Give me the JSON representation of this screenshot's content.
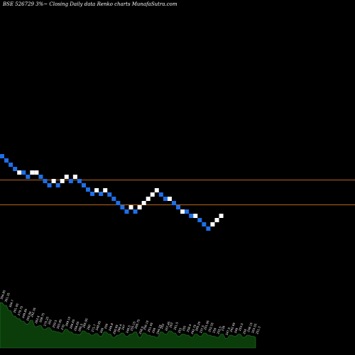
{
  "chart_data": {
    "type": "renko",
    "title": "BSE 526729 3%~ Closing Daily data  Renko  charts MunafaSutra.com",
    "colors": {
      "background": "#000000",
      "up_brick": "#ffffff",
      "down_brick": "#1e6fe8",
      "reference_line": "#b5651d",
      "volume_fill": "#0b3d0b",
      "volume_stroke": "#2a7a2a",
      "label": "#ffffff"
    },
    "reference_lines": [
      253.5,
      288.5
    ],
    "bricks": [
      {
        "dir": "down",
        "y": 220
      },
      {
        "dir": "down",
        "y": 226
      },
      {
        "dir": "down",
        "y": 232
      },
      {
        "dir": "down",
        "y": 238
      },
      {
        "dir": "up",
        "y": 243
      },
      {
        "dir": "down",
        "y": 243
      },
      {
        "dir": "down",
        "y": 249
      },
      {
        "dir": "up",
        "y": 243
      },
      {
        "dir": "up",
        "y": 243
      },
      {
        "dir": "down",
        "y": 249
      },
      {
        "dir": "down",
        "y": 255
      },
      {
        "dir": "down",
        "y": 261
      },
      {
        "dir": "up",
        "y": 255
      },
      {
        "dir": "down",
        "y": 261
      },
      {
        "dir": "up",
        "y": 255
      },
      {
        "dir": "up",
        "y": 249
      },
      {
        "dir": "down",
        "y": 255
      },
      {
        "dir": "up",
        "y": 249
      },
      {
        "dir": "down",
        "y": 255
      },
      {
        "dir": "down",
        "y": 261
      },
      {
        "dir": "down",
        "y": 267
      },
      {
        "dir": "down",
        "y": 273
      },
      {
        "dir": "up",
        "y": 268
      },
      {
        "dir": "down",
        "y": 273
      },
      {
        "dir": "up",
        "y": 268
      },
      {
        "dir": "down",
        "y": 274
      },
      {
        "dir": "down",
        "y": 280
      },
      {
        "dir": "down",
        "y": 286
      },
      {
        "dir": "down",
        "y": 292
      },
      {
        "dir": "down",
        "y": 298
      },
      {
        "dir": "up",
        "y": 292
      },
      {
        "dir": "down",
        "y": 298
      },
      {
        "dir": "up",
        "y": 292
      },
      {
        "dir": "up",
        "y": 286
      },
      {
        "dir": "up",
        "y": 280
      },
      {
        "dir": "up",
        "y": 274
      },
      {
        "dir": "up",
        "y": 268
      },
      {
        "dir": "down",
        "y": 274
      },
      {
        "dir": "down",
        "y": 280
      },
      {
        "dir": "up",
        "y": 280
      },
      {
        "dir": "down",
        "y": 286
      },
      {
        "dir": "down",
        "y": 292
      },
      {
        "dir": "up",
        "y": 298
      },
      {
        "dir": "down",
        "y": 298
      },
      {
        "dir": "down",
        "y": 304
      },
      {
        "dir": "up",
        "y": 304
      },
      {
        "dir": "down",
        "y": 310
      },
      {
        "dir": "down",
        "y": 316
      },
      {
        "dir": "down",
        "y": 322
      },
      {
        "dir": "up",
        "y": 316
      },
      {
        "dir": "up",
        "y": 310
      },
      {
        "dir": "up",
        "y": 304
      }
    ],
    "price_labels": [
      "304.85",
      "301.35",
      "304.7",
      "291.05",
      "279.75",
      "249.85",
      "263.05",
      "262.35",
      "263.6",
      "268.75",
      "275.25",
      "262",
      "259.5",
      "263.95",
      "270",
      "269.15",
      "266.65",
      "256.65",
      "265.5",
      "265.95",
      "260",
      "271.7",
      "248.95",
      "260",
      "250",
      "249.8",
      "250.05",
      "266.4",
      "247",
      "246.5",
      "255.15",
      "260.75",
      "258.5",
      "256.15",
      "251.05",
      "250",
      "244.25",
      "252",
      "267.45",
      "263",
      "261.5",
      "253",
      "255",
      "258.4",
      "262.75",
      "265.25",
      "237.5",
      "251.95",
      "252.55",
      "256",
      "255.5",
      "230",
      "247.5",
      "242.65",
      "240",
      "253.5",
      "255",
      "238.15",
      "263.55",
      "251.3"
    ],
    "volume_profile": [
      0.85,
      0.8,
      0.7,
      0.6,
      0.55,
      0.5,
      0.45,
      0.52,
      0.4,
      0.42,
      0.35,
      0.38,
      0.32,
      0.3,
      0.28,
      0.35,
      0.3,
      0.26,
      0.25,
      0.32,
      0.28,
      0.24,
      0.27,
      0.22,
      0.3,
      0.26,
      0.2,
      0.24,
      0.28,
      0.22,
      0.26,
      0.3,
      0.2,
      0.28,
      0.24,
      0.22,
      0.2,
      0.3,
      0.26,
      0.32,
      0.28,
      0.22,
      0.26,
      0.24,
      0.2,
      0.26,
      0.22,
      0.28,
      0.24,
      0.22,
      0.2,
      0.26,
      0.18,
      0.24,
      0.22,
      0.26,
      0.2,
      0.24,
      0.22,
      0.2
    ]
  }
}
